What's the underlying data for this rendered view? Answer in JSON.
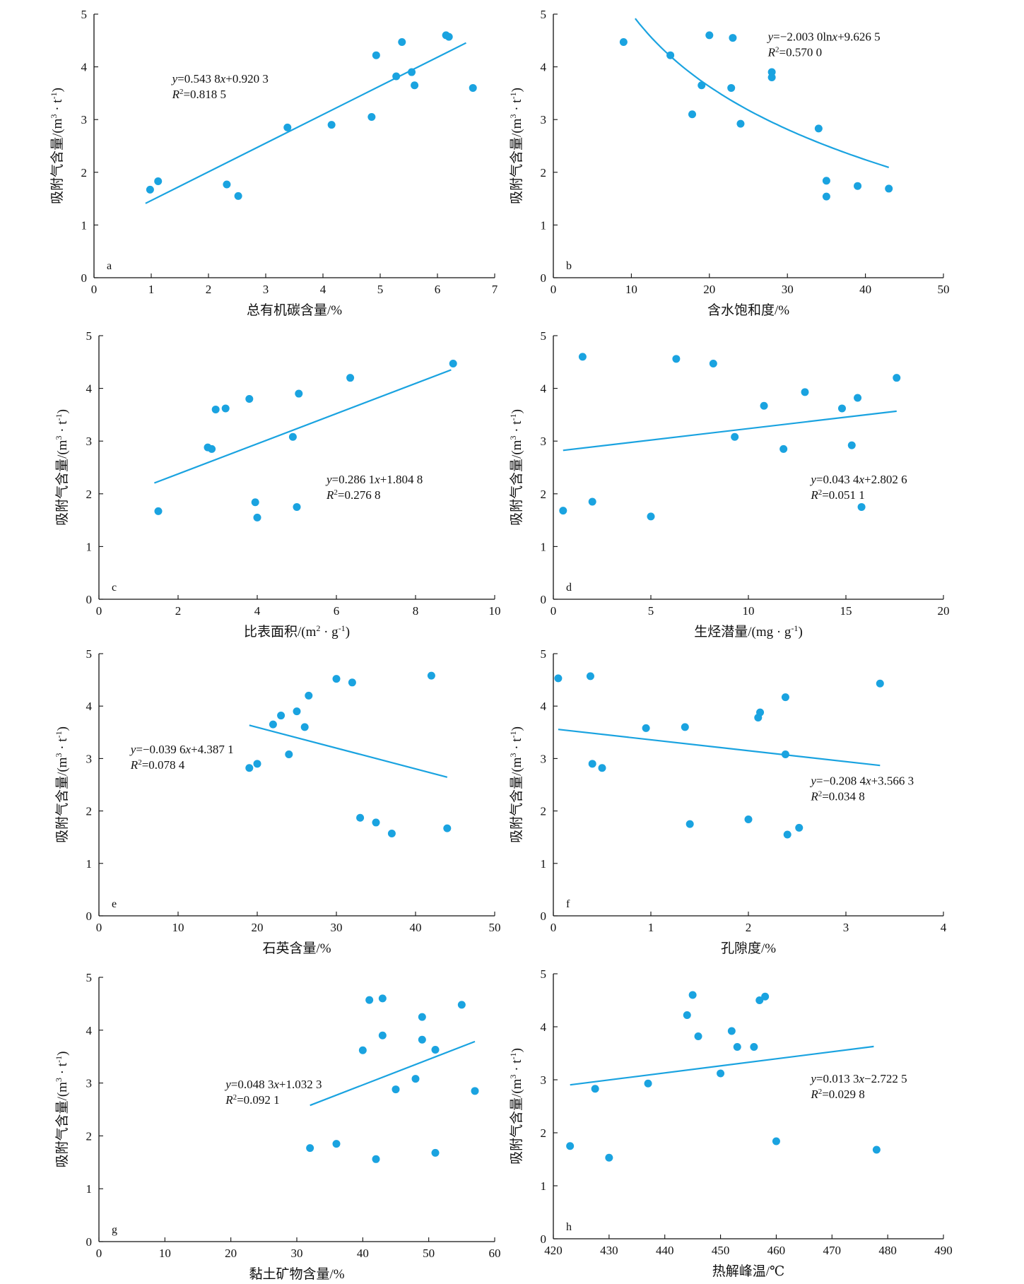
{
  "colors": {
    "marker": "#1aa3e0",
    "fit": "#1aa3e0",
    "axis": "#111111"
  },
  "ylabel_parts": {
    "main": "吸附气含量/(m",
    "exp1": "3",
    "mid": " · t",
    "exp2": "-1",
    "close": ")"
  },
  "chart_data": [
    {
      "id": "a",
      "type": "scatter",
      "tag": "a",
      "xlabel": "总有机碳含量/%",
      "xlim": [
        0,
        7
      ],
      "xticks": [
        0,
        1,
        2,
        3,
        4,
        5,
        6,
        7
      ],
      "ylim": [
        0,
        5
      ],
      "yticks": [
        0,
        1,
        2,
        3,
        4,
        5
      ],
      "points": [
        [
          0.98,
          1.67
        ],
        [
          1.12,
          1.83
        ],
        [
          2.32,
          1.77
        ],
        [
          2.52,
          1.55
        ],
        [
          3.38,
          2.85
        ],
        [
          4.15,
          2.9
        ],
        [
          4.85,
          3.05
        ],
        [
          4.93,
          4.22
        ],
        [
          5.28,
          3.82
        ],
        [
          5.38,
          4.47
        ],
        [
          5.55,
          3.9
        ],
        [
          5.6,
          3.65
        ],
        [
          6.15,
          4.6
        ],
        [
          6.2,
          4.57
        ],
        [
          6.62,
          3.6
        ]
      ],
      "fit": {
        "kind": "linear",
        "a": 0.5438,
        "b": 0.9203,
        "xr": [
          0.9,
          6.5
        ]
      },
      "equation": {
        "y_lead": "y",
        "text": "=0.543 8",
        "x_var": "x",
        "text2": "+0.920 3"
      },
      "r2": {
        "r": "R",
        "sup": "2",
        "text": "=0.818 5"
      }
    },
    {
      "id": "b",
      "type": "scatter",
      "tag": "b",
      "xlabel": "含水饱和度/%",
      "xlim": [
        0,
        50
      ],
      "xticks": [
        0,
        10,
        20,
        30,
        40,
        50
      ],
      "ylim": [
        0,
        5
      ],
      "yticks": [
        0,
        1,
        2,
        3,
        4,
        5
      ],
      "points": [
        [
          9,
          4.47
        ],
        [
          15,
          4.22
        ],
        [
          17.8,
          3.1
        ],
        [
          19,
          3.65
        ],
        [
          20,
          4.6
        ],
        [
          22.8,
          3.6
        ],
        [
          23,
          4.55
        ],
        [
          24,
          2.92
        ],
        [
          28,
          3.9
        ],
        [
          28,
          3.8
        ],
        [
          34,
          2.83
        ],
        [
          35,
          1.84
        ],
        [
          35,
          1.54
        ],
        [
          39,
          1.74
        ],
        [
          43,
          1.69
        ]
      ],
      "fit": {
        "kind": "log",
        "a": -2.003,
        "b": 9.6265,
        "xr": [
          10.5,
          43
        ]
      },
      "equation": {
        "y_lead": "y",
        "text": "=−2.003 0ln",
        "x_var": "x",
        "text2": "+9.626 5"
      },
      "r2": {
        "r": "R",
        "sup": "2",
        "text": "=0.570 0"
      }
    },
    {
      "id": "c",
      "type": "scatter",
      "tag": "c",
      "xlabel": "比表面积/(m",
      "xlabel_sup": "2",
      "xlabel_tail": " · g",
      "xlabel_sup2": "-1",
      "xlabel_close": ")",
      "xlim": [
        0,
        10
      ],
      "xticks": [
        0,
        2,
        4,
        6,
        8,
        10
      ],
      "ylim": [
        0,
        5
      ],
      "yticks": [
        0,
        1,
        2,
        3,
        4,
        5
      ],
      "points": [
        [
          1.5,
          1.67
        ],
        [
          2.75,
          2.88
        ],
        [
          2.85,
          2.85
        ],
        [
          2.95,
          3.6
        ],
        [
          3.2,
          3.62
        ],
        [
          3.8,
          3.8
        ],
        [
          3.95,
          1.84
        ],
        [
          4.0,
          1.55
        ],
        [
          4.9,
          3.08
        ],
        [
          5.0,
          1.75
        ],
        [
          5.05,
          3.9
        ],
        [
          6.35,
          4.2
        ],
        [
          8.95,
          4.47
        ]
      ],
      "fit": {
        "kind": "linear",
        "a": 0.2861,
        "b": 1.8048,
        "xr": [
          1.4,
          8.9
        ]
      },
      "equation": {
        "y_lead": "y",
        "text": "=0.286 1",
        "x_var": "x",
        "text2": "+1.804 8"
      },
      "r2": {
        "r": "R",
        "sup": "2",
        "text": "=0.276 8"
      }
    },
    {
      "id": "d",
      "type": "scatter",
      "tag": "d",
      "xlabel": "生烃潜量/(mg · g",
      "xlabel_sup": "-1",
      "xlabel_close": ")",
      "xlim": [
        0,
        20
      ],
      "xticks": [
        0,
        5,
        10,
        15,
        20
      ],
      "ylim": [
        0,
        5
      ],
      "yticks": [
        0,
        1,
        2,
        3,
        4,
        5
      ],
      "points": [
        [
          0.5,
          1.68
        ],
        [
          1.5,
          4.6
        ],
        [
          2,
          1.85
        ],
        [
          5,
          1.57
        ],
        [
          6.3,
          4.56
        ],
        [
          8.2,
          4.47
        ],
        [
          9.3,
          3.08
        ],
        [
          10.8,
          3.67
        ],
        [
          11.8,
          2.85
        ],
        [
          12.9,
          3.93
        ],
        [
          14.8,
          3.62
        ],
        [
          15.3,
          2.92
        ],
        [
          15.6,
          3.82
        ],
        [
          15.8,
          1.75
        ],
        [
          17.6,
          4.2
        ]
      ],
      "fit": {
        "kind": "linear",
        "a": 0.0434,
        "b": 2.8026,
        "xr": [
          0.5,
          17.6
        ]
      },
      "equation": {
        "y_lead": "y",
        "text": "=0.043 4",
        "x_var": "x",
        "text2": "+2.802 6"
      },
      "r2": {
        "r": "R",
        "sup": "2",
        "text": "=0.051 1"
      }
    },
    {
      "id": "e",
      "type": "scatter",
      "tag": "e",
      "xlabel": "石英含量/%",
      "xlim": [
        0,
        50
      ],
      "xticks": [
        0,
        10,
        20,
        30,
        40,
        50
      ],
      "ylim": [
        0,
        5
      ],
      "yticks": [
        0,
        1,
        2,
        3,
        4,
        5
      ],
      "points": [
        [
          19,
          2.82
        ],
        [
          20,
          2.9
        ],
        [
          22,
          3.65
        ],
        [
          23,
          3.82
        ],
        [
          24,
          3.08
        ],
        [
          25,
          3.9
        ],
        [
          26,
          3.6
        ],
        [
          26.5,
          4.2
        ],
        [
          30,
          4.52
        ],
        [
          32,
          4.45
        ],
        [
          33,
          1.87
        ],
        [
          35,
          1.78
        ],
        [
          37,
          1.57
        ],
        [
          42,
          4.58
        ],
        [
          44,
          1.67
        ]
      ],
      "fit": {
        "kind": "linear",
        "a": -0.0396,
        "b": 4.3871,
        "xr": [
          19,
          44
        ]
      },
      "equation": {
        "y_lead": "y",
        "text": "=−0.039 6",
        "x_var": "x",
        "text2": "+4.387 1"
      },
      "r2": {
        "r": "R",
        "sup": "2",
        "text": "=0.078 4"
      }
    },
    {
      "id": "f",
      "type": "scatter",
      "tag": "f",
      "xlabel": "孔隙度/%",
      "xlim": [
        0,
        4
      ],
      "xticks": [
        0,
        1,
        2,
        3,
        4
      ],
      "ylim": [
        0,
        5
      ],
      "yticks": [
        0,
        1,
        2,
        3,
        4,
        5
      ],
      "points": [
        [
          0.05,
          4.53
        ],
        [
          0.38,
          4.57
        ],
        [
          0.4,
          2.9
        ],
        [
          0.5,
          2.82
        ],
        [
          0.95,
          3.58
        ],
        [
          1.35,
          3.6
        ],
        [
          1.4,
          1.75
        ],
        [
          2.0,
          1.84
        ],
        [
          2.1,
          3.78
        ],
        [
          2.12,
          3.88
        ],
        [
          2.38,
          4.17
        ],
        [
          2.38,
          3.08
        ],
        [
          2.4,
          1.55
        ],
        [
          2.52,
          1.68
        ],
        [
          3.35,
          4.43
        ]
      ],
      "fit": {
        "kind": "linear",
        "a": -0.2084,
        "b": 3.5663,
        "xr": [
          0.05,
          3.35
        ]
      },
      "equation": {
        "y_lead": "y",
        "text": "=−0.208 4",
        "x_var": "x",
        "text2": "+3.566 3"
      },
      "r2": {
        "r": "R",
        "sup": "2",
        "text": "=0.034 8"
      }
    },
    {
      "id": "g",
      "type": "scatter",
      "tag": "g",
      "xlabel": "黏土矿物含量/%",
      "xlim": [
        0,
        60
      ],
      "xticks": [
        0,
        10,
        20,
        30,
        40,
        50,
        60
      ],
      "ylim": [
        0,
        5
      ],
      "yticks": [
        0,
        1,
        2,
        3,
        4,
        5
      ],
      "points": [
        [
          32,
          1.77
        ],
        [
          36,
          1.85
        ],
        [
          40,
          3.62
        ],
        [
          41,
          4.57
        ],
        [
          42,
          1.56
        ],
        [
          43,
          3.9
        ],
        [
          43,
          4.6
        ],
        [
          45,
          2.88
        ],
        [
          48,
          3.08
        ],
        [
          49,
          3.82
        ],
        [
          49,
          4.25
        ],
        [
          51,
          1.68
        ],
        [
          51,
          3.63
        ],
        [
          55,
          4.48
        ],
        [
          57,
          2.85
        ]
      ],
      "fit": {
        "kind": "linear",
        "a": 0.0483,
        "b": 1.0323,
        "xr": [
          32,
          57
        ]
      },
      "equation": {
        "y_lead": "y",
        "text": "=0.048 3",
        "x_var": "x",
        "text2": "+1.032 3"
      },
      "r2": {
        "r": "R",
        "sup": "2",
        "text": "=0.092 1"
      }
    },
    {
      "id": "h",
      "type": "scatter",
      "tag": "h",
      "xlabel": "热解峰温/℃",
      "xlim": [
        420,
        490
      ],
      "xticks": [
        420,
        430,
        440,
        450,
        460,
        470,
        480,
        490
      ],
      "ylim": [
        0,
        5
      ],
      "yticks": [
        0,
        1,
        2,
        3,
        4,
        5
      ],
      "points": [
        [
          423,
          1.75
        ],
        [
          427.5,
          2.83
        ],
        [
          430,
          1.53
        ],
        [
          437,
          2.93
        ],
        [
          444,
          4.22
        ],
        [
          445,
          4.6
        ],
        [
          446,
          3.82
        ],
        [
          450,
          3.12
        ],
        [
          452,
          3.92
        ],
        [
          453,
          3.62
        ],
        [
          456,
          3.62
        ],
        [
          457,
          4.5
        ],
        [
          458,
          4.57
        ],
        [
          460,
          1.84
        ],
        [
          478,
          1.68
        ]
      ],
      "fit": {
        "kind": "linear",
        "a": 0.0133,
        "b": -2.7225,
        "xr": [
          423,
          477.5
        ]
      },
      "equation": {
        "y_lead": "y",
        "text": "=0.013 3",
        "x_var": "x",
        "text2": "−2.722 5"
      },
      "r2": {
        "r": "R",
        "sup": "2",
        "text": "=0.029 8"
      }
    }
  ]
}
